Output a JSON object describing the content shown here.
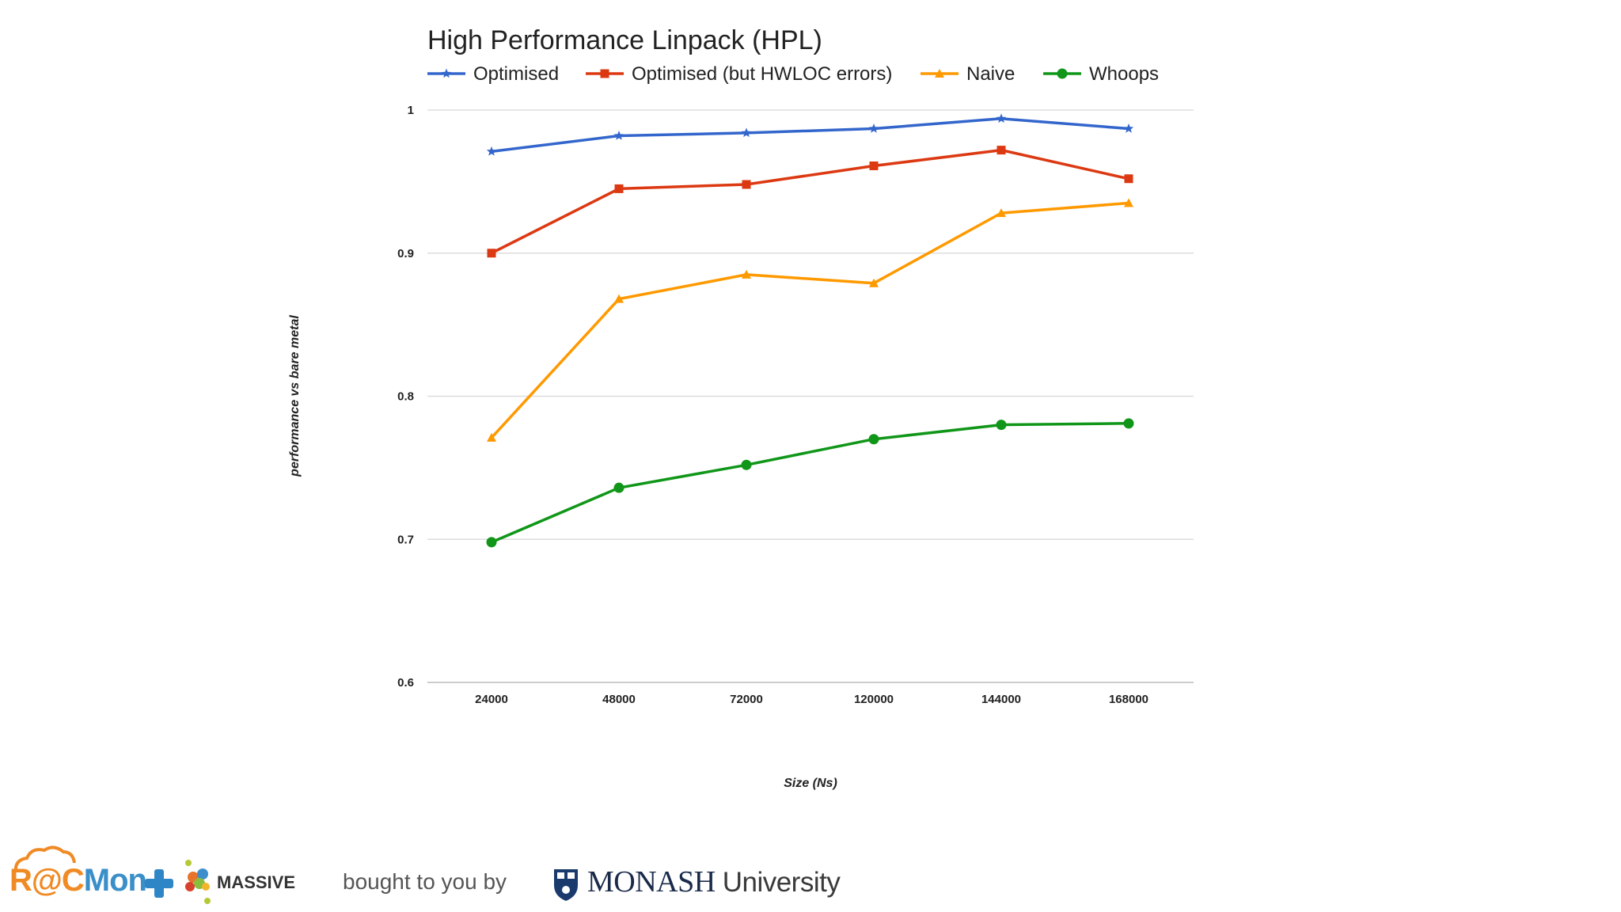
{
  "chart_data": {
    "type": "line",
    "title": "High Performance Linpack (HPL)",
    "xlabel": "Size (Ns)",
    "ylabel": "performance vs bare metal",
    "categories": [
      "24000",
      "48000",
      "72000",
      "120000",
      "144000",
      "168000"
    ],
    "ylim": [
      0.6,
      1.0
    ],
    "yticks": [
      "0.6",
      "0.7",
      "0.8",
      "0.9",
      "1"
    ],
    "ytick_values": [
      0.6,
      0.7,
      0.8,
      0.9,
      1.0
    ],
    "grid": true,
    "legend_position": "top",
    "series": [
      {
        "name": "Optimised",
        "color": "#3366cc",
        "marker": "star",
        "values": [
          0.971,
          0.982,
          0.984,
          0.987,
          0.994,
          0.987
        ]
      },
      {
        "name": "Optimised (but HWLOC errors)",
        "color": "#dc3912",
        "marker": "square",
        "values": [
          0.9,
          0.945,
          0.948,
          0.961,
          0.972,
          0.952
        ]
      },
      {
        "name": "Naive",
        "color": "#ff9900",
        "marker": "triangle",
        "values": [
          0.771,
          0.868,
          0.885,
          0.879,
          0.928,
          0.935
        ]
      },
      {
        "name": "Whoops",
        "color": "#109618",
        "marker": "circle",
        "values": [
          0.698,
          0.736,
          0.752,
          0.77,
          0.78,
          0.781
        ]
      }
    ]
  },
  "footer": {
    "racmon_prefix": "R@C",
    "racmon_suffix": "Mon",
    "massive_label": "MASSIVE",
    "brought_text": "bought to you by",
    "monash_name": "MONASH",
    "monash_university": "University"
  }
}
